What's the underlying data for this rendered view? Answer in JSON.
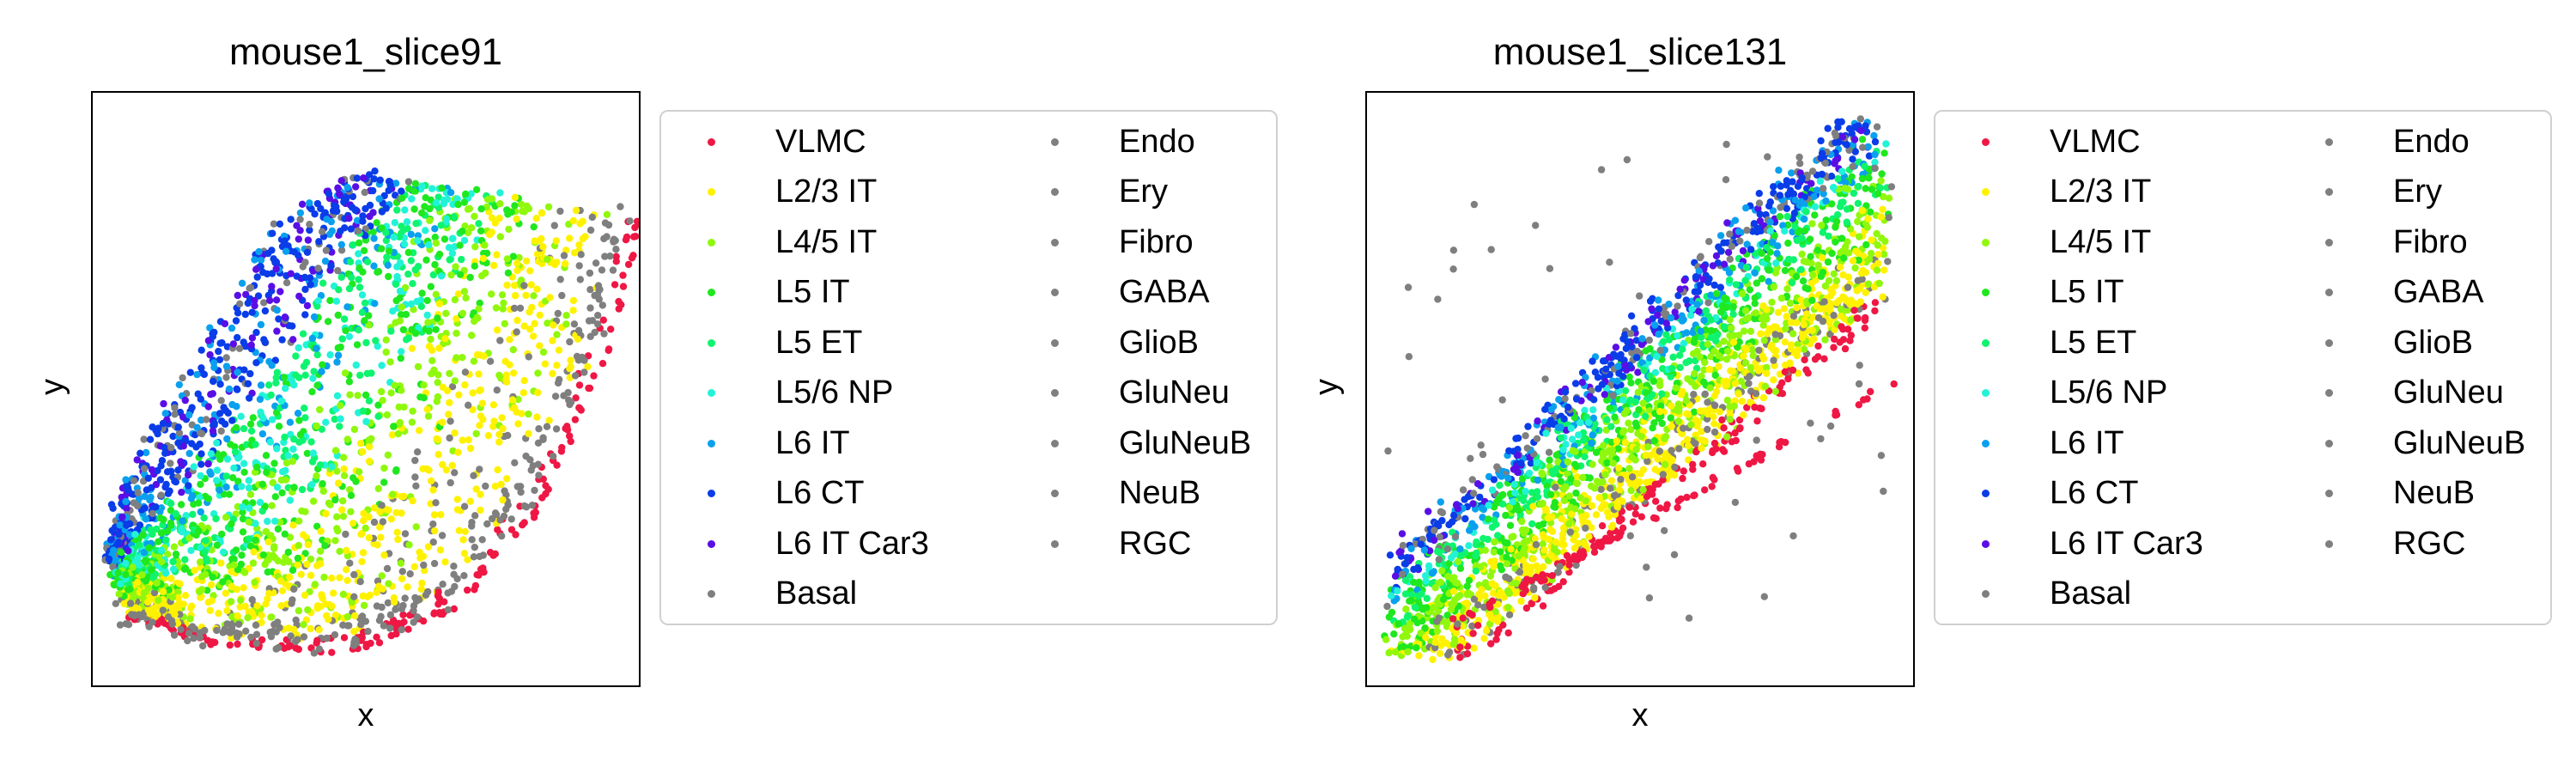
{
  "chart_data": [
    {
      "type": "scatter",
      "title": "mouse1_slice91",
      "xlabel": "x",
      "ylabel": "y",
      "grid": false,
      "ticks": false,
      "legend_placement": "right, outside",
      "legend_columns": 2,
      "xlim": [
        0,
        1
      ],
      "ylim": [
        0,
        1
      ],
      "series": [
        {
          "name": "VLMC",
          "color": "#ef1744"
        },
        {
          "name": "L2/3 IT",
          "color": "#fff200"
        },
        {
          "name": "L4/5 IT",
          "color": "#90f80c"
        },
        {
          "name": "L5 IT",
          "color": "#1fe81f"
        },
        {
          "name": "L5 ET",
          "color": "#0ef46e"
        },
        {
          "name": "L5/6 NP",
          "color": "#22f3d8"
        },
        {
          "name": "L6 IT",
          "color": "#0aa0ee"
        },
        {
          "name": "L6 CT",
          "color": "#0a3ce8"
        },
        {
          "name": "L6 IT Car3",
          "color": "#5a0ee6"
        },
        {
          "name": "Basal",
          "color": "#7f7f7f"
        },
        {
          "name": "Endo",
          "color": "#7f7f7f"
        },
        {
          "name": "Ery",
          "color": "#7f7f7f"
        },
        {
          "name": "Fibro",
          "color": "#7f7f7f"
        },
        {
          "name": "GABA",
          "color": "#7f7f7f"
        },
        {
          "name": "GlioB",
          "color": "#7f7f7f"
        },
        {
          "name": "GluNeu",
          "color": "#7f7f7f"
        },
        {
          "name": "GluNeuB",
          "color": "#7f7f7f"
        },
        {
          "name": "NeuB",
          "color": "#7f7f7f"
        },
        {
          "name": "RGC",
          "color": "#7f7f7f"
        }
      ]
    },
    {
      "type": "scatter",
      "title": "mouse1_slice131",
      "xlabel": "x",
      "ylabel": "y",
      "grid": false,
      "ticks": false,
      "legend_placement": "right, outside",
      "legend_columns": 2,
      "xlim": [
        0,
        1
      ],
      "ylim": [
        0,
        1
      ],
      "series": [
        {
          "name": "VLMC",
          "color": "#ef1744"
        },
        {
          "name": "L2/3 IT",
          "color": "#fff200"
        },
        {
          "name": "L4/5 IT",
          "color": "#90f80c"
        },
        {
          "name": "L5 IT",
          "color": "#1fe81f"
        },
        {
          "name": "L5 ET",
          "color": "#0ef46e"
        },
        {
          "name": "L5/6 NP",
          "color": "#22f3d8"
        },
        {
          "name": "L6 IT",
          "color": "#0aa0ee"
        },
        {
          "name": "L6 CT",
          "color": "#0a3ce8"
        },
        {
          "name": "L6 IT Car3",
          "color": "#5a0ee6"
        },
        {
          "name": "Basal",
          "color": "#7f7f7f"
        },
        {
          "name": "Endo",
          "color": "#7f7f7f"
        },
        {
          "name": "Ery",
          "color": "#7f7f7f"
        },
        {
          "name": "Fibro",
          "color": "#7f7f7f"
        },
        {
          "name": "GABA",
          "color": "#7f7f7f"
        },
        {
          "name": "GlioB",
          "color": "#7f7f7f"
        },
        {
          "name": "GluNeu",
          "color": "#7f7f7f"
        },
        {
          "name": "GluNeuB",
          "color": "#7f7f7f"
        },
        {
          "name": "NeuB",
          "color": "#7f7f7f"
        },
        {
          "name": "RGC",
          "color": "#7f7f7f"
        }
      ]
    }
  ]
}
